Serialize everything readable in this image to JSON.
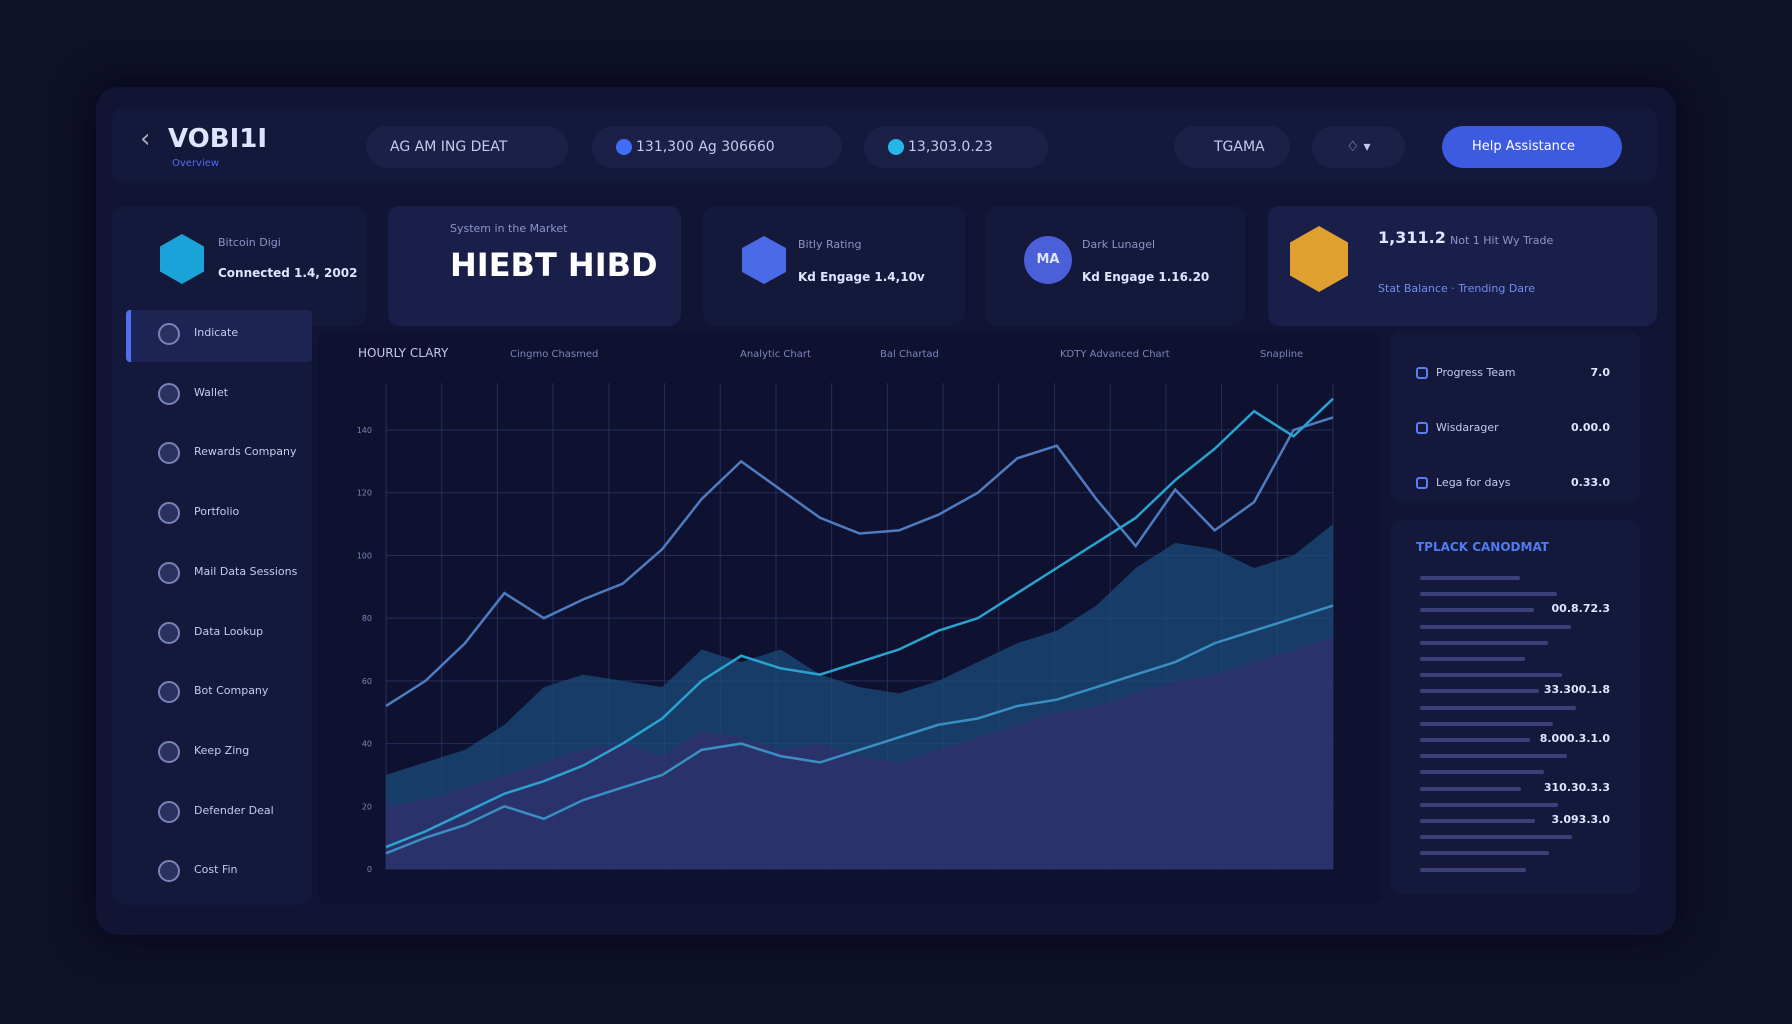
{
  "header": {
    "brand": "VOBI1I",
    "subtitle": "Overview",
    "pills": [
      "AG AM ING DEAT",
      "131,300 Ag 306660",
      "13,303.0.23"
    ],
    "search": "TGAMA",
    "button": "Help Assistance"
  },
  "cards": [
    {
      "title": "Bitcoin Digi",
      "subtitle": "Connected 1.4, 2002"
    },
    {
      "caption": "System in the Market",
      "headline": "HIEBT HIBD"
    },
    {
      "title": "Bitly Rating",
      "subtitle": "Kd Engage 1.4,10v"
    },
    {
      "badge": "MA",
      "title": "Dark Lunagel",
      "subtitle": "Kd Engage 1.16.20"
    },
    {
      "value": "1,311.2",
      "text": "Not 1 Hit Wy Trade",
      "detail": "Stat Balance · Trending Dare"
    }
  ],
  "sidebar": [
    "Indicate",
    "Wallet",
    "Rewards Company",
    "Portfolio",
    "Mail Data Sessions",
    "Data Lookup",
    "Bot Company",
    "Keep Zing",
    "Defender Deal",
    "Cost Fin"
  ],
  "chart_data": {
    "type": "line",
    "title": "HOURLY CLARY",
    "controls": [
      "Cingmo Chasmed",
      "Analytic Chart",
      "Bal Chartad",
      "KDTY Advanced Chart",
      "Snapline"
    ],
    "ylim": [
      0,
      155
    ],
    "yticks": [
      0,
      20,
      40,
      60,
      80,
      100,
      120,
      140
    ],
    "grid": true,
    "series": [
      {
        "color": "#1b4f80",
        "style": "area",
        "values": [
          30,
          34,
          38,
          46,
          58,
          62,
          60,
          58,
          70,
          66,
          70,
          62,
          58,
          56,
          60,
          66,
          72,
          76,
          84,
          96,
          104,
          102,
          96,
          100,
          110
        ]
      },
      {
        "color": "#332d6e",
        "style": "area",
        "values": [
          20,
          22,
          26,
          30,
          34,
          38,
          40,
          36,
          44,
          42,
          38,
          40,
          36,
          34,
          38,
          42,
          46,
          50,
          52,
          56,
          60,
          62,
          66,
          70,
          74
        ]
      },
      {
        "color": "#4f7cc0",
        "style": "line",
        "values": [
          52,
          60,
          72,
          88,
          80,
          86,
          91,
          102,
          118,
          130,
          121,
          112,
          107,
          108,
          113,
          120,
          131,
          135,
          118,
          103,
          121,
          108,
          117,
          140,
          144
        ]
      },
      {
        "color": "#2aa3cf",
        "style": "line",
        "values": [
          7,
          12,
          18,
          24,
          28,
          33,
          40,
          48,
          60,
          68,
          64,
          62,
          66,
          70,
          76,
          80,
          88,
          96,
          104,
          112,
          124,
          134,
          146,
          138,
          150
        ]
      },
      {
        "color": "#3a8fc0",
        "style": "line",
        "values": [
          5,
          10,
          14,
          20,
          16,
          22,
          26,
          30,
          38,
          40,
          36,
          34,
          38,
          42,
          46,
          48,
          52,
          54,
          58,
          62,
          66,
          72,
          76,
          80,
          84
        ]
      }
    ]
  },
  "stats": [
    {
      "label": "Progress Team",
      "value": "7.0"
    },
    {
      "label": "Wisdarager",
      "value": "0.00.0"
    },
    {
      "label": "Lega for days",
      "value": "0.33.0"
    }
  ],
  "ledger": {
    "title": "TPLACK CANODMAT",
    "values": [
      "00.8.72.3",
      "33.300.1.8",
      "8.000.3.1.0",
      "310.30.3.3",
      "3.093.3.0"
    ]
  }
}
